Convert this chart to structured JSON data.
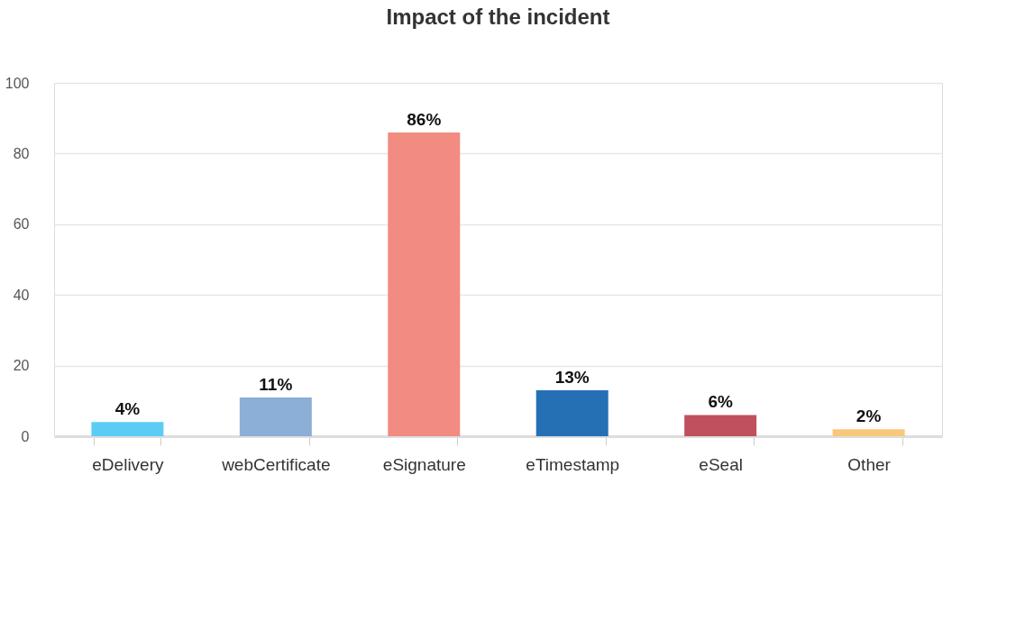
{
  "chart_data": {
    "type": "bar",
    "title": "Impact of the incident",
    "categories": [
      "eDelivery",
      "webCertificate",
      "eSignature",
      "eTimestamp",
      "eSeal",
      "Other"
    ],
    "values": [
      4,
      11,
      86,
      13,
      6,
      2
    ],
    "colors": [
      "#5bcdf5",
      "#8bafd6",
      "#f28b80",
      "#2570b5",
      "#c0505e",
      "#f9c77a"
    ],
    "value_labels": [
      "4%",
      "11%",
      "86%",
      "13%",
      "6%",
      "2%"
    ],
    "ylim": [
      0,
      100
    ],
    "yticks": [
      0,
      20,
      40,
      60,
      80,
      100
    ],
    "grid": "y",
    "legend": false
  }
}
